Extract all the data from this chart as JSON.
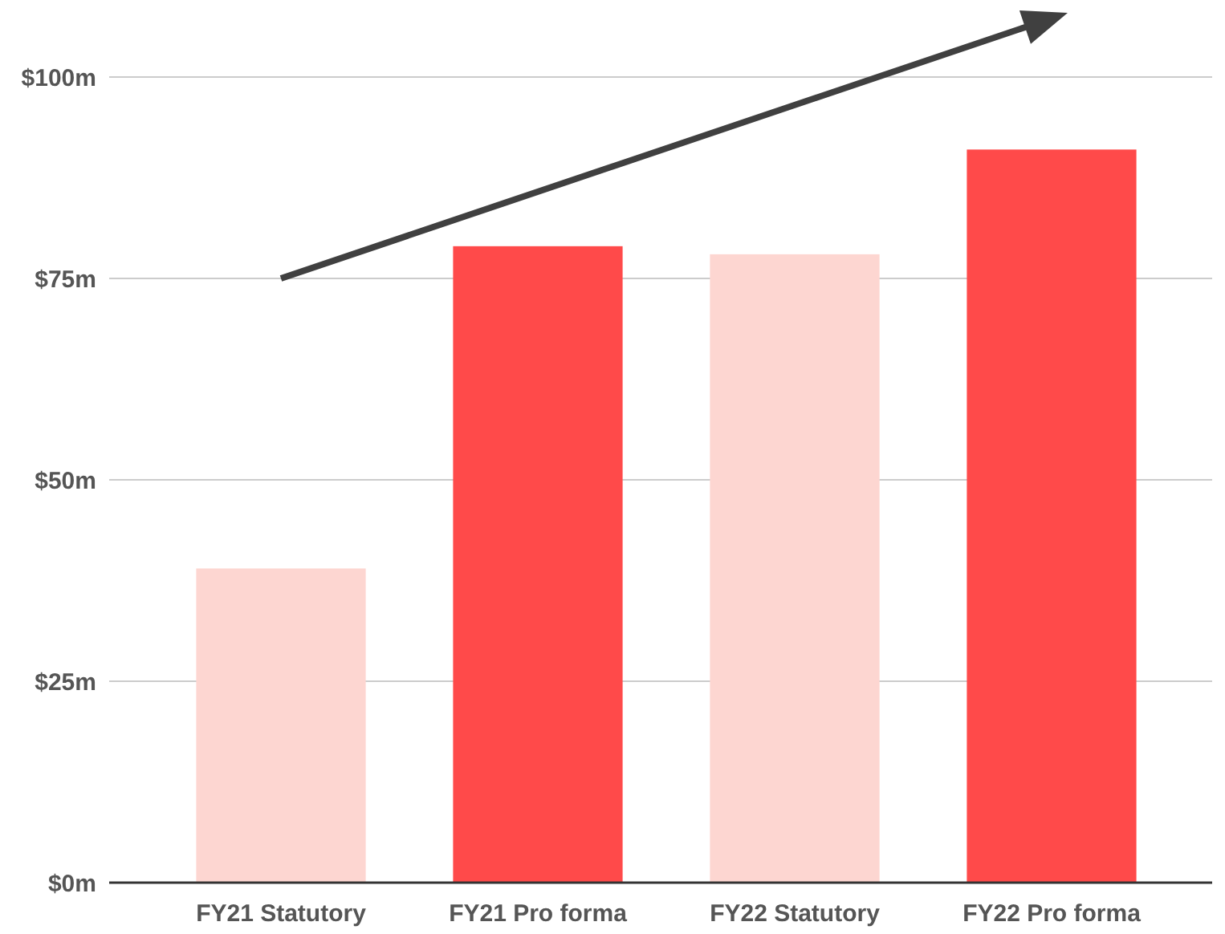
{
  "chart_data": {
    "type": "bar",
    "categories": [
      "FY21 Statutory",
      "FY21 Pro forma",
      "FY22 Statutory",
      "FY22 Pro forma"
    ],
    "values": [
      39,
      79,
      78,
      91
    ],
    "colors": [
      "#fdd6d1",
      "#ff4a4a",
      "#fdd6d1",
      "#ff4a4a"
    ],
    "ylim": [
      0,
      100
    ],
    "yticks": [
      {
        "value": 0,
        "label": "$0m"
      },
      {
        "value": 25,
        "label": "$25m"
      },
      {
        "value": 50,
        "label": "$50m"
      },
      {
        "value": 75,
        "label": "$75m"
      },
      {
        "value": 100,
        "label": "$100m"
      }
    ],
    "grid": "y"
  }
}
